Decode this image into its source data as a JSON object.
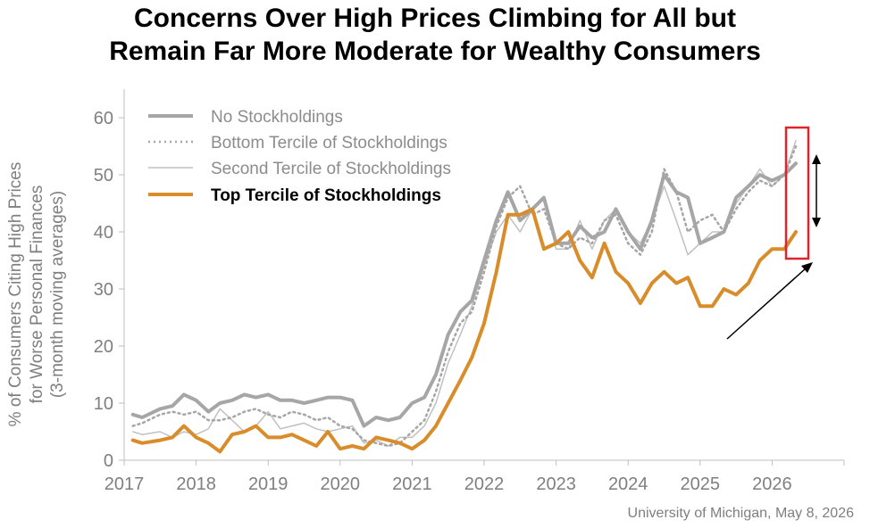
{
  "chart_data": {
    "type": "line",
    "title_lines": [
      "Concerns Over High Prices Climbing for All but",
      "Remain Far More Moderate for Wealthy Consumers"
    ],
    "ylabel_lines": [
      "% of Consumers Citing High Prices",
      "for Worse Personal Finances",
      "(3-month moving averages)"
    ],
    "xlabel": "",
    "ylim": [
      0,
      65
    ],
    "yticks": [
      "0",
      "10",
      "20",
      "30",
      "40",
      "50",
      "60"
    ],
    "xlim": [
      2017,
      2027
    ],
    "xticks": [
      "2017",
      "2018",
      "2019",
      "2020",
      "2021",
      "2022",
      "2023",
      "2024",
      "2025",
      "2026"
    ],
    "grid": false,
    "legend_position": "top-left",
    "source": "University of Michigan, May 8, 2026",
    "annotations": [
      "red highlight box around the latest readings",
      "double-headed arrow marking the gap between groups",
      "upward arrow along the top tercile's recent rise"
    ],
    "series": [
      {
        "name": "No Stockholdings",
        "style": "solid-thick",
        "color": "#a6a6a6",
        "x": [
          2017.12,
          2017.25,
          2017.5,
          2017.67,
          2017.83,
          2018.0,
          2018.17,
          2018.33,
          2018.5,
          2018.67,
          2018.83,
          2019.0,
          2019.17,
          2019.33,
          2019.5,
          2019.67,
          2019.83,
          2020.0,
          2020.17,
          2020.33,
          2020.5,
          2020.67,
          2020.83,
          2021.0,
          2021.17,
          2021.33,
          2021.5,
          2021.67,
          2021.83,
          2022.0,
          2022.17,
          2022.33,
          2022.5,
          2022.67,
          2022.83,
          2023.0,
          2023.17,
          2023.33,
          2023.5,
          2023.67,
          2023.83,
          2024.0,
          2024.17,
          2024.33,
          2024.5,
          2024.67,
          2024.83,
          2025.0,
          2025.17,
          2025.33,
          2025.5,
          2025.67,
          2025.83,
          2026.0,
          2026.17,
          2026.33
        ],
        "values": [
          8,
          7.5,
          9,
          9.5,
          11.5,
          10.5,
          8.5,
          10,
          10.5,
          11.5,
          11,
          11.5,
          10.5,
          10.5,
          10,
          10.5,
          11,
          11,
          10.5,
          6,
          7.5,
          7,
          7.5,
          10,
          11,
          15,
          22,
          26,
          28,
          35,
          42,
          47,
          42,
          44,
          46,
          38,
          38,
          41,
          39,
          40,
          44,
          40,
          37,
          42,
          50,
          47,
          46,
          38,
          39,
          40,
          46,
          48,
          50,
          49,
          50,
          52
        ]
      },
      {
        "name": "Bottom Tercile of Stockholdings",
        "style": "dotted",
        "color": "#a6a6a6",
        "x": [
          2017.12,
          2017.25,
          2017.5,
          2017.67,
          2017.83,
          2018.0,
          2018.17,
          2018.33,
          2018.5,
          2018.67,
          2018.83,
          2019.0,
          2019.17,
          2019.33,
          2019.5,
          2019.67,
          2019.83,
          2020.0,
          2020.17,
          2020.33,
          2020.5,
          2020.67,
          2020.83,
          2021.0,
          2021.17,
          2021.33,
          2021.5,
          2021.67,
          2021.83,
          2022.0,
          2022.17,
          2022.33,
          2022.5,
          2022.67,
          2022.83,
          2023.0,
          2023.17,
          2023.33,
          2023.5,
          2023.67,
          2023.83,
          2024.0,
          2024.17,
          2024.33,
          2024.5,
          2024.67,
          2024.83,
          2025.0,
          2025.17,
          2025.33,
          2025.5,
          2025.67,
          2025.83,
          2026.0,
          2026.17,
          2026.33
        ],
        "values": [
          6,
          6.5,
          8,
          8.5,
          8,
          8.5,
          7,
          7,
          7.5,
          8.5,
          9,
          8,
          7.5,
          8.5,
          8,
          7,
          7.5,
          6,
          5.5,
          3.5,
          3,
          2.5,
          3,
          5,
          7,
          12,
          19,
          24,
          26,
          33,
          41,
          46,
          48,
          43,
          44,
          38,
          37,
          39,
          38,
          42,
          43,
          38,
          36,
          40,
          51,
          47,
          40,
          42,
          43,
          40,
          44,
          47,
          49,
          48,
          50,
          55
        ]
      },
      {
        "name": "Second Tercile of Stockholdings",
        "style": "solid-thin",
        "color": "#c0c0c0",
        "x": [
          2017.12,
          2017.25,
          2017.5,
          2017.67,
          2017.83,
          2018.0,
          2018.17,
          2018.33,
          2018.5,
          2018.67,
          2018.83,
          2019.0,
          2019.17,
          2019.33,
          2019.5,
          2019.67,
          2019.83,
          2020.0,
          2020.17,
          2020.33,
          2020.5,
          2020.67,
          2020.83,
          2021.0,
          2021.17,
          2021.33,
          2021.5,
          2021.67,
          2021.83,
          2022.0,
          2022.17,
          2022.33,
          2022.5,
          2022.67,
          2022.83,
          2023.0,
          2023.17,
          2023.33,
          2023.5,
          2023.67,
          2023.83,
          2024.0,
          2024.17,
          2024.33,
          2024.5,
          2024.67,
          2024.83,
          2025.0,
          2025.17,
          2025.33,
          2025.5,
          2025.67,
          2025.83,
          2026.0,
          2026.17,
          2026.33
        ],
        "values": [
          5,
          4.5,
          5,
          4,
          5,
          4.5,
          5.5,
          9,
          7,
          5,
          6,
          8.5,
          5.5,
          6,
          6.5,
          5.5,
          5,
          5.5,
          6,
          3,
          3.5,
          2.5,
          4,
          4,
          6,
          10,
          17,
          22,
          27,
          34,
          40,
          43,
          40,
          44,
          46,
          37,
          37,
          42,
          37,
          42,
          44,
          40,
          38,
          42,
          48,
          42,
          36,
          38,
          40,
          40,
          45,
          48,
          51,
          48,
          50,
          56
        ]
      },
      {
        "name": "Top Tercile of Stockholdings",
        "style": "solid-thick",
        "color": "#d98c2a",
        "x": [
          2017.12,
          2017.25,
          2017.5,
          2017.67,
          2017.83,
          2018.0,
          2018.17,
          2018.33,
          2018.5,
          2018.67,
          2018.83,
          2019.0,
          2019.17,
          2019.33,
          2019.5,
          2019.67,
          2019.83,
          2020.0,
          2020.17,
          2020.33,
          2020.5,
          2020.67,
          2020.83,
          2021.0,
          2021.17,
          2021.33,
          2021.5,
          2021.67,
          2021.83,
          2022.0,
          2022.17,
          2022.33,
          2022.5,
          2022.67,
          2022.83,
          2023.0,
          2023.17,
          2023.33,
          2023.5,
          2023.67,
          2023.83,
          2024.0,
          2024.17,
          2024.33,
          2024.5,
          2024.67,
          2024.83,
          2025.0,
          2025.17,
          2025.33,
          2025.5,
          2025.67,
          2025.83,
          2026.0,
          2026.17,
          2026.33
        ],
        "values": [
          3.5,
          3,
          3.5,
          4,
          6,
          4,
          3,
          1.5,
          4.5,
          5,
          6,
          4,
          4,
          4.5,
          3.5,
          2.5,
          5,
          2,
          2.5,
          2,
          4,
          3.5,
          3,
          2,
          3.5,
          6,
          10,
          14,
          18,
          24,
          33,
          43,
          43,
          44,
          37,
          38,
          40,
          35,
          32,
          38,
          33,
          31,
          27.5,
          31,
          33,
          31,
          32,
          27,
          27,
          30,
          29,
          31,
          35,
          37,
          37,
          40
        ]
      }
    ]
  }
}
